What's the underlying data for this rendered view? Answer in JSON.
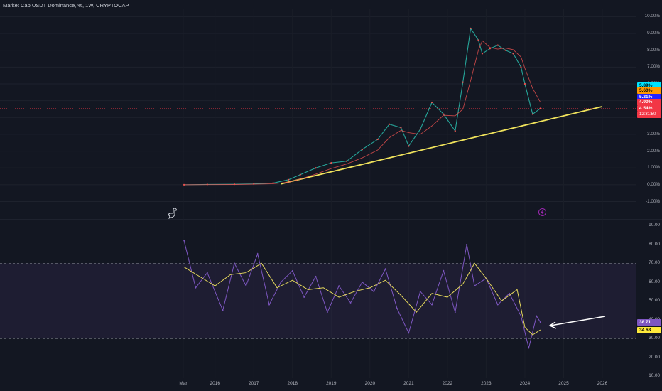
{
  "header": {
    "title": "Market Cap USDT Dominance, %, 1W, CRYPTOCAP"
  },
  "main_axis": {
    "ticks": [
      "10.00%",
      "9.00%",
      "8.00%",
      "7.00%",
      "6.00%",
      "5.00%",
      "4.00%",
      "3.00%",
      "2.00%",
      "1.00%",
      "0.00%",
      "-1.00%"
    ]
  },
  "price_tags": [
    {
      "label": "5.89%",
      "bg": "#00e5ff",
      "fg": "#000000"
    },
    {
      "label": "5.60%",
      "bg": "#ff9800",
      "fg": "#000000"
    },
    {
      "label": "5.21%",
      "bg": "#2323ff",
      "fg": "#ffffff"
    },
    {
      "label": "4.90%",
      "bg": "#f23645",
      "fg": "#ffffff"
    },
    {
      "label": "4.54%",
      "bg": "#f23645",
      "fg": "#ffffff"
    },
    {
      "label": "12:31:50",
      "bg": "#f23645",
      "fg": "#ffffff"
    }
  ],
  "rsi_axis": {
    "ticks": [
      "90.00",
      "80.00",
      "70.00",
      "60.00",
      "50.00",
      "40.00",
      "30.00",
      "20.00",
      "10.00"
    ]
  },
  "rsi_tags": [
    {
      "label": "38.71",
      "bg": "#7e57c2",
      "fg": "#ffffff"
    },
    {
      "label": "34.63",
      "bg": "#ffeb3b",
      "fg": "#000000"
    }
  ],
  "time_axis": {
    "labels": [
      "Mar",
      "2016",
      "2017",
      "2018",
      "2019",
      "2020",
      "2021",
      "2022",
      "2023",
      "2024",
      "2025",
      "2026"
    ]
  },
  "icons": {
    "left_marker": "dinosaur-icon",
    "right_marker": "lightning-icon"
  },
  "chart_data": {
    "type": "line",
    "title": "Market Cap USDT Dominance, %, 1W, CRYPTOCAP",
    "price": {
      "x": [
        2015.2,
        2015.8,
        2016.5,
        2017.0,
        2017.5,
        2017.9,
        2018.2,
        2018.6,
        2019.0,
        2019.4,
        2019.8,
        2020.2,
        2020.5,
        2020.8,
        2021.0,
        2021.3,
        2021.6,
        2021.9,
        2022.2,
        2022.4,
        2022.6,
        2022.8,
        2022.9,
        2023.1,
        2023.3,
        2023.5,
        2023.7,
        2023.9,
        2024.0,
        2024.2,
        2024.4
      ],
      "y": [
        0.0,
        0.02,
        0.03,
        0.05,
        0.1,
        0.3,
        0.6,
        1.0,
        1.3,
        1.4,
        2.1,
        2.7,
        3.6,
        3.4,
        2.3,
        3.3,
        4.9,
        4.2,
        3.2,
        6.1,
        9.3,
        8.6,
        7.8,
        8.1,
        8.3,
        8.0,
        7.8,
        7.0,
        6.0,
        4.2,
        4.54
      ]
    },
    "rsi": {
      "x": [
        2015.2,
        2015.5,
        2015.8,
        2016.2,
        2016.5,
        2016.8,
        2017.1,
        2017.4,
        2017.7,
        2018.0,
        2018.3,
        2018.6,
        2018.9,
        2019.2,
        2019.5,
        2019.8,
        2020.1,
        2020.4,
        2020.7,
        2021.0,
        2021.3,
        2021.6,
        2021.9,
        2022.2,
        2022.5,
        2022.7,
        2023.0,
        2023.3,
        2023.6,
        2023.9,
        2024.1,
        2024.3,
        2024.4
      ],
      "y": [
        82,
        57,
        65,
        45,
        70,
        58,
        75,
        48,
        60,
        66,
        52,
        63,
        44,
        58,
        49,
        60,
        55,
        67,
        46,
        33,
        55,
        48,
        66,
        44,
        80,
        58,
        62,
        48,
        54,
        42,
        25,
        42,
        38.71
      ]
    },
    "rsi_ma": {
      "x": [
        2015.2,
        2015.6,
        2016.0,
        2016.4,
        2016.8,
        2017.2,
        2017.6,
        2018.0,
        2018.4,
        2018.8,
        2019.2,
        2019.6,
        2020.0,
        2020.4,
        2020.8,
        2021.2,
        2021.6,
        2022.0,
        2022.4,
        2022.7,
        2023.0,
        2023.4,
        2023.8,
        2024.0,
        2024.2,
        2024.4
      ],
      "y": [
        68,
        63,
        58,
        64,
        65,
        70,
        57,
        61,
        56,
        57,
        52,
        55,
        57,
        61,
        53,
        44,
        54,
        52,
        59,
        70,
        62,
        50,
        56,
        36,
        32,
        34.63
      ]
    },
    "trendline": {
      "x": [
        2017.7,
        2026.0
      ],
      "y": [
        0.05,
        4.65
      ]
    },
    "ylim": [
      -1.4,
      10.1
    ],
    "rsi_ylim": [
      9,
      92
    ],
    "rsi_band": [
      30,
      70
    ],
    "grid": true
  }
}
